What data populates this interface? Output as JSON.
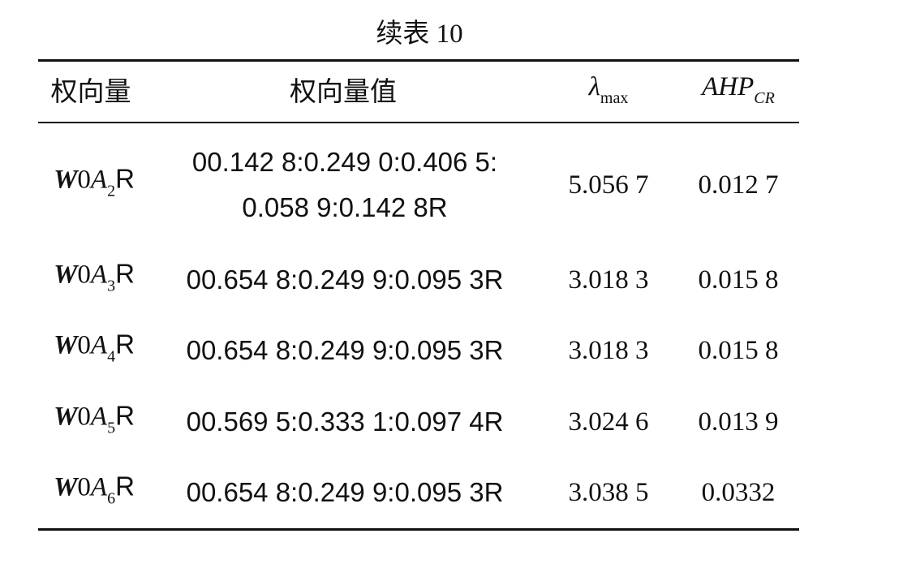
{
  "title": "续表 10",
  "table": {
    "header": {
      "label": "权向量",
      "value": "权向量值",
      "lambda": [
        "λ",
        "max"
      ],
      "cr": [
        "AHP",
        "CR"
      ]
    },
    "rows": [
      {
        "label": [
          "W",
          "0",
          "A",
          "2",
          "R"
        ],
        "value": [
          "00.142 8:0.249 0:0.406 5:",
          "0.058 9:0.142 8R"
        ],
        "lambda": "5.056 7",
        "cr": "0.012 7"
      },
      {
        "label": [
          "W",
          "0",
          "A",
          "3",
          "R"
        ],
        "value": [
          "00.654 8:0.249 9:0.095 3R"
        ],
        "lambda": "3.018 3",
        "cr": "0.015 8"
      },
      {
        "label": [
          "W",
          "0",
          "A",
          "4",
          "R"
        ],
        "value": [
          "00.654 8:0.249 9:0.095 3R"
        ],
        "lambda": "3.018 3",
        "cr": "0.015 8"
      },
      {
        "label": [
          "W",
          "0",
          "A",
          "5",
          "R"
        ],
        "value": [
          "00.569 5:0.333 1:0.097 4R"
        ],
        "lambda": "3.024 6",
        "cr": "0.013 9"
      },
      {
        "label": [
          "W",
          "0",
          "A",
          "6",
          "R"
        ],
        "value": [
          "00.654 8:0.249 9:0.095 3R"
        ],
        "lambda": "3.038 5",
        "cr": "0.0332"
      }
    ]
  }
}
